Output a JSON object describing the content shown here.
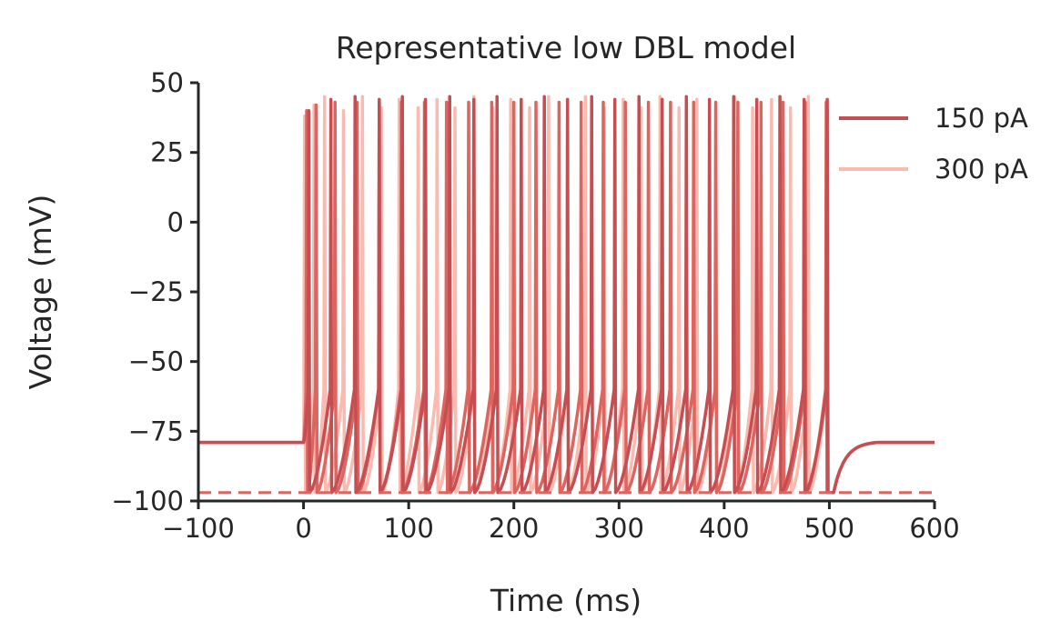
{
  "chart_data": {
    "type": "line",
    "title": "Representative low DBL model",
    "xlabel": "Time (ms)",
    "ylabel": "Voltage (mV)",
    "xlim": [
      -100,
      600
    ],
    "ylim": [
      -100,
      50
    ],
    "xticks": [
      -100,
      0,
      100,
      200,
      300,
      400,
      500,
      600
    ],
    "yticks": [
      -100,
      -75,
      -50,
      -25,
      0,
      25,
      50
    ],
    "xtick_labels": [
      "−100",
      "0",
      "100",
      "200",
      "300",
      "400",
      "500",
      "600"
    ],
    "ytick_labels": [
      "−100",
      "−75",
      "−50",
      "−25",
      "0",
      "25",
      "50"
    ],
    "grid": false,
    "legend_position": "top-right",
    "stimulus_window_ms": [
      0,
      500
    ],
    "resting_potential_mV": -79,
    "reset_potential_mV": -97,
    "reference_line_mV": -97,
    "series": [
      {
        "name": "150 pA",
        "color": "#c44e52",
        "spike_times_ms": [
          5,
          26,
          49,
          72,
          94,
          116,
          139,
          162,
          184,
          207,
          229,
          251,
          274,
          296,
          319,
          341,
          364,
          386,
          409,
          431,
          453,
          476,
          498
        ],
        "spike_peaks_mV": [
          40,
          44,
          45,
          44,
          45,
          44,
          45,
          44,
          45,
          44,
          45,
          44,
          45,
          44,
          45,
          44,
          45,
          44,
          45,
          44,
          45,
          44,
          44
        ]
      },
      {
        "name": "",
        "color": "#dd6560",
        "spike_times_ms": [
          3,
          12,
          30,
          51,
          72,
          93,
          115,
          136,
          157,
          179,
          200,
          221,
          243,
          264,
          285,
          306,
          328,
          349,
          371,
          392,
          413,
          435,
          456,
          477,
          497
        ],
        "spike_peaks_mV": [
          40,
          42,
          43,
          43,
          43,
          43,
          43,
          43,
          43,
          43,
          43,
          43,
          43,
          43,
          43,
          43,
          43,
          43,
          43,
          43,
          43,
          43,
          43,
          43,
          43
        ]
      },
      {
        "name": "300 pA",
        "color": "#fbbab0",
        "spike_times_ms": [
          1,
          10,
          20,
          38,
          56,
          74,
          91,
          109,
          127,
          144,
          162,
          180,
          197,
          215,
          233,
          251,
          268,
          286,
          304,
          321,
          339,
          357,
          374,
          392,
          410,
          427,
          445,
          463,
          480,
          498
        ],
        "spike_peaks_mV": [
          38,
          42,
          45,
          40,
          45,
          41,
          44,
          41,
          44,
          41,
          45,
          41,
          44,
          41,
          45,
          41,
          45,
          41,
          44,
          41,
          45,
          41,
          44,
          41,
          45,
          41,
          44,
          41,
          45,
          41
        ]
      }
    ]
  }
}
